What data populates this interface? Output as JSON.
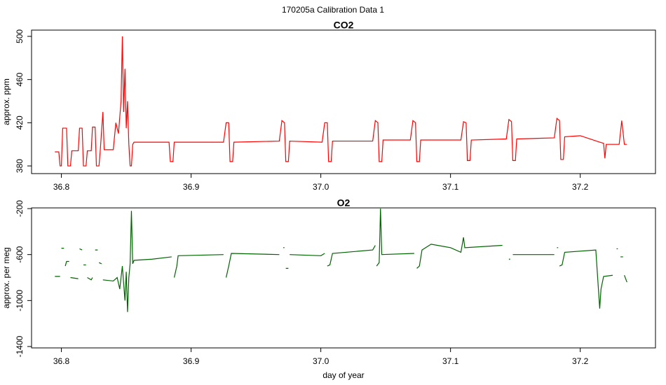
{
  "title": "170205a   Calibration Data 1",
  "chart_data": [
    {
      "type": "line",
      "title": "CO2",
      "ylabel": "approx. ppm",
      "xlim": [
        36.777,
        37.258
      ],
      "ylim": [
        372.9,
        505.8
      ],
      "xticks": [
        36.8,
        36.9,
        {
          "value": 37,
          "label": "37.0"
        },
        37.1,
        37.2
      ],
      "yticks": [
        380,
        420,
        460,
        500
      ],
      "series": [
        {
          "name": "CO2",
          "color": "#ff0000",
          "x": [
            36.795,
            36.798,
            36.799,
            36.8,
            36.801,
            36.804,
            36.805,
            36.807,
            36.808,
            36.813,
            36.814,
            36.816,
            36.817,
            36.819,
            36.82,
            36.823,
            36.824,
            36.826,
            36.827,
            36.829,
            36.83,
            36.832,
            36.833,
            36.84,
            36.842,
            36.844,
            36.846,
            36.847,
            36.848,
            36.849,
            36.85,
            36.851,
            36.852,
            36.853,
            36.854,
            36.855,
            36.856,
            36.88,
            36.883,
            36.884,
            36.886,
            36.887,
            36.9,
            36.925,
            36.927,
            36.929,
            36.93,
            36.932,
            36.933,
            36.968,
            36.97,
            36.972,
            36.973,
            36.975,
            36.976,
            37.001,
            37.003,
            37.005,
            37.006,
            37.008,
            37.009,
            37.04,
            37.042,
            37.044,
            37.045,
            37.047,
            37.048,
            37.069,
            37.071,
            37.073,
            37.074,
            37.076,
            37.077,
            37.108,
            37.11,
            37.112,
            37.113,
            37.115,
            37.116,
            37.143,
            37.145,
            37.147,
            37.148,
            37.15,
            37.151,
            37.18,
            37.182,
            37.184,
            37.185,
            37.187,
            37.188,
            37.2,
            37.215,
            37.218,
            37.219,
            37.22,
            37.23,
            37.232,
            37.234,
            37.236
          ],
          "values": [
            393,
            393,
            380,
            380,
            415,
            415,
            380,
            380,
            394,
            394,
            415,
            415,
            380,
            380,
            394,
            394,
            416,
            416,
            380,
            380,
            395,
            430,
            395,
            395,
            420,
            410,
            440,
            500,
            430,
            470,
            415,
            440,
            400,
            380,
            380,
            400,
            402,
            402,
            402,
            384,
            384,
            402,
            402,
            402,
            420,
            420,
            384,
            384,
            402,
            403,
            422,
            420,
            384,
            384,
            403,
            402,
            420,
            420,
            384,
            384,
            403,
            403,
            422,
            420,
            384,
            384,
            404,
            404,
            422,
            420,
            384,
            384,
            404,
            404,
            421,
            420,
            385,
            385,
            404,
            405,
            423,
            421,
            385,
            385,
            405,
            406,
            424,
            422,
            386,
            386,
            407,
            408,
            402,
            401,
            387,
            400,
            400,
            422,
            400,
            400
          ]
        }
      ]
    },
    {
      "type": "line",
      "title": "O2",
      "ylabel": "approx. per meg",
      "xlabel": "day of year",
      "xlim": [
        36.777,
        37.258
      ],
      "ylim": [
        -1412,
        -194
      ],
      "xticks": [
        36.8,
        36.9,
        {
          "value": 37,
          "label": "37.0"
        },
        37.1,
        37.2
      ],
      "yticks": [
        -200,
        -600,
        -1000,
        -1400
      ],
      "series": [
        {
          "name": "O2",
          "color": "#006400",
          "x": [
            36.795,
            36.799,
            null,
            36.8,
            36.802,
            null,
            36.803,
            36.804,
            36.806,
            null,
            36.807,
            36.813,
            null,
            36.814,
            36.816,
            null,
            36.817,
            36.819,
            null,
            36.82,
            36.823,
            36.824,
            null,
            36.826,
            36.828,
            null,
            36.829,
            36.831,
            null,
            36.832,
            36.84,
            36.843,
            36.845,
            36.847,
            36.849,
            36.85,
            36.851,
            36.852,
            36.853,
            36.854,
            36.855,
            36.856,
            36.87,
            36.885,
            null,
            36.887,
            36.889,
            36.89,
            36.925,
            null,
            36.927,
            36.929,
            36.931,
            36.968,
            null,
            36.971,
            36.972,
            null,
            36.973,
            36.975,
            null,
            36.976,
            37.0,
            37.003,
            null,
            37.005,
            37.007,
            37.009,
            37.04,
            37.042,
            null,
            37.043,
            37.045,
            37.046,
            37.047,
            37.072,
            null,
            37.074,
            37.076,
            37.078,
            37.085,
            37.1,
            37.108,
            37.11,
            37.111,
            37.14,
            null,
            37.145,
            37.146,
            null,
            37.148,
            37.18,
            null,
            37.182,
            37.183,
            null,
            37.184,
            37.186,
            37.188,
            37.212,
            37.215,
            37.216,
            37.218,
            37.225,
            null,
            37.228,
            37.229,
            null,
            37.231,
            37.233,
            null,
            37.234,
            37.236
          ],
          "values": [
            -790,
            -790,
            null,
            -545,
            -545,
            null,
            -700,
            -660,
            -660,
            null,
            -800,
            -810,
            null,
            -550,
            -560,
            null,
            -690,
            -690,
            null,
            -800,
            -820,
            -800,
            null,
            -560,
            -560,
            null,
            -670,
            -680,
            null,
            -820,
            -830,
            -800,
            -900,
            -700,
            -1000,
            -750,
            -1100,
            -800,
            -680,
            -220,
            -680,
            -650,
            -640,
            -620,
            null,
            -800,
            -700,
            -610,
            -600,
            null,
            -800,
            -700,
            -590,
            -600,
            null,
            -540,
            -540,
            null,
            -720,
            -720,
            null,
            -600,
            -610,
            -590,
            null,
            -700,
            -690,
            -590,
            -560,
            -520,
            null,
            -700,
            -670,
            -200,
            -600,
            -590,
            null,
            -720,
            -700,
            -560,
            -510,
            -540,
            -580,
            -450,
            -540,
            -520,
            null,
            -640,
            -640,
            null,
            -600,
            -600,
            null,
            -540,
            -540,
            null,
            -700,
            -690,
            -580,
            -560,
            -1070,
            -900,
            -790,
            -780,
            null,
            -550,
            -550,
            null,
            -620,
            -620,
            null,
            -780,
            -840
          ]
        }
      ]
    }
  ]
}
